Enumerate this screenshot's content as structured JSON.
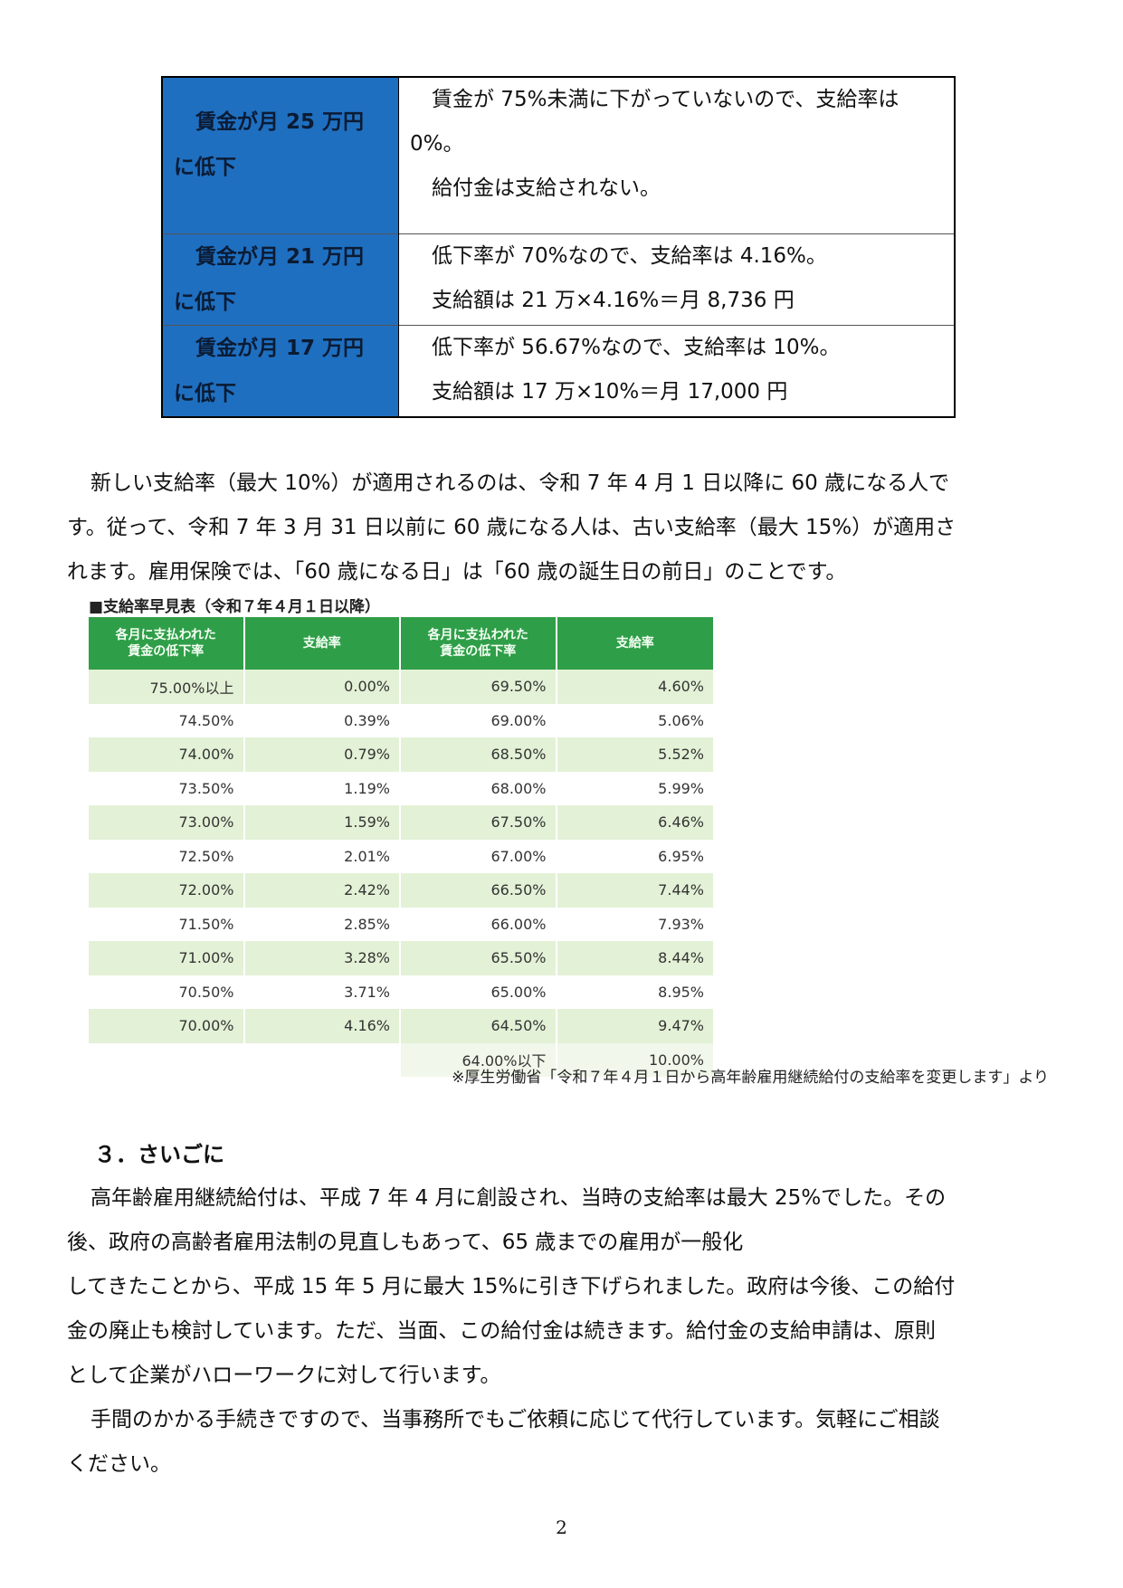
{
  "example_table": {
    "rows": [
      {
        "left": [
          "賃金が月 25 万円",
          "に低下"
        ],
        "right": [
          "賃金が 75%未満に下がっていないので、支給率は",
          "0%。",
          "給付金は支給されない。"
        ]
      },
      {
        "left": [
          "賃金が月 21 万円",
          "に低下"
        ],
        "right": [
          "低下率が 70%なので、支給率は 4.16%。",
          "支給額は 21 万×4.16%＝月 8,736 円"
        ]
      },
      {
        "left": [
          "賃金が月 17 万円",
          "に低下"
        ],
        "right": [
          "低下率が 56.67%なので、支給率は 10%。",
          "支給額は 17 万×10%＝月 17,000 円"
        ]
      }
    ]
  },
  "paragraph1": [
    "新しい支給率（最大 10%）が適用されるのは、令和 7 年 4 月 1 日以降に 60 歳になる人で",
    "す。従って、令和 7 年 3 月 31 日以前に 60 歳になる人は、古い支給率（最大 15%）が適用さ",
    "れます。雇用保険では、「60 歳になる日」は「60 歳の誕生日の前日」のことです。"
  ],
  "rate_table": {
    "title": "■支給率早見表（令和７年４月１日以降）",
    "headers": [
      "各月に支払われた\n賃金の低下率",
      "支給率",
      "各月に支払われた\n賃金の低下率",
      "支給率"
    ],
    "rows": [
      [
        "75.00%以上",
        "0.00%",
        "69.50%",
        "4.60%"
      ],
      [
        "74.50%",
        "0.39%",
        "69.00%",
        "5.06%"
      ],
      [
        "74.00%",
        "0.79%",
        "68.50%",
        "5.52%"
      ],
      [
        "73.50%",
        "1.19%",
        "68.00%",
        "5.99%"
      ],
      [
        "73.00%",
        "1.59%",
        "67.50%",
        "6.46%"
      ],
      [
        "72.50%",
        "2.01%",
        "67.00%",
        "6.95%"
      ],
      [
        "72.00%",
        "2.42%",
        "66.50%",
        "7.44%"
      ],
      [
        "71.50%",
        "2.85%",
        "66.00%",
        "7.93%"
      ],
      [
        "71.00%",
        "3.28%",
        "65.50%",
        "8.44%"
      ],
      [
        "70.50%",
        "3.71%",
        "65.00%",
        "8.95%"
      ],
      [
        "70.00%",
        "4.16%",
        "64.50%",
        "9.47%"
      ],
      [
        "",
        "",
        "64.00%以下",
        "10.00%"
      ]
    ]
  },
  "source": "※厚生労働省「令和７年４月１日から高年齢雇用継続給付の支給率を変更します」より",
  "section_title": "３．さいごに",
  "paragraph2": [
    "高年齢雇用継続給付は、平成 7 年 4 月に創設され、当時の支給率は最大 25%でした。その",
    "後、政府の高齢者雇用法制の見直しもあって、65 歳までの雇用が一般化",
    "してきたことから、平成 15 年 5 月に最大 15%に引き下げられました。政府は今後、この給付",
    "金の廃止も検討しています。ただ、当面、この給付金は続きます。給付金の支給申請は、原則",
    "として企業がハローワークに対して行います。"
  ],
  "paragraph3": [
    "手間のかかる手続きですので、当事務所でもご依頼に応じて代行しています。気軽にご相談",
    "ください。"
  ],
  "page_number": "2"
}
